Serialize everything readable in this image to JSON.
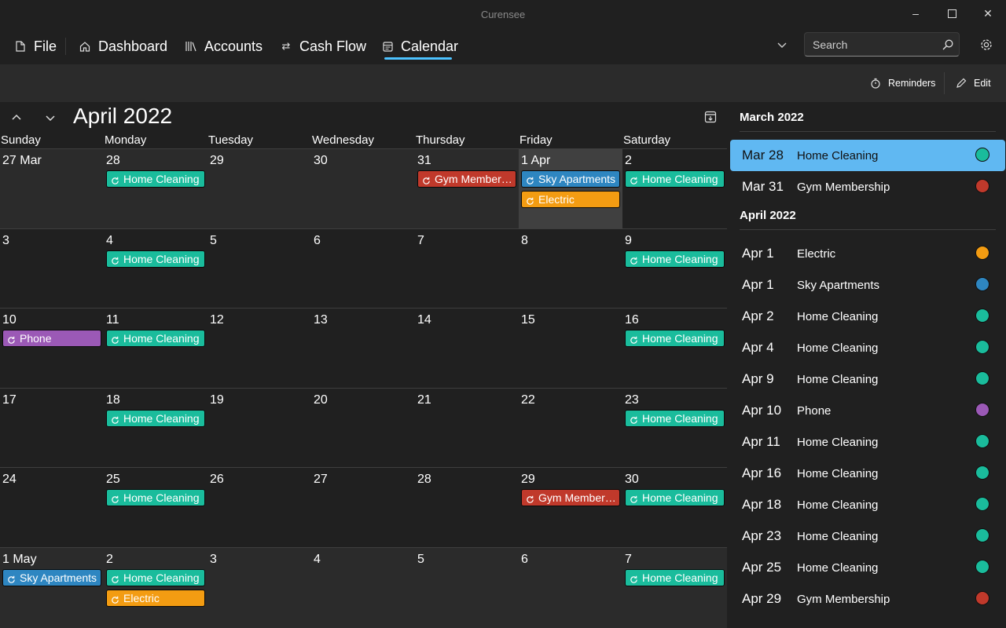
{
  "app": {
    "title": "Curensee"
  },
  "nav": {
    "file": "File",
    "dashboard": "Dashboard",
    "accounts": "Accounts",
    "cashflow": "Cash Flow",
    "calendar": "Calendar",
    "selected": "Calendar"
  },
  "search": {
    "placeholder": "Search"
  },
  "commands": {
    "reminders": "Reminders",
    "edit": "Edit"
  },
  "calendar": {
    "month_title": "April 2022",
    "weekdays": [
      "Sunday",
      "Monday",
      "Tuesday",
      "Wednesday",
      "Thursday",
      "Friday",
      "Saturday"
    ],
    "weeks": [
      [
        {
          "label": "27 Mar",
          "other": true,
          "events": []
        },
        {
          "label": "28",
          "other": true,
          "events": [
            {
              "name": "Home Cleaning",
              "color": "#1abc9c"
            }
          ]
        },
        {
          "label": "29",
          "other": true,
          "events": []
        },
        {
          "label": "30",
          "other": true,
          "events": []
        },
        {
          "label": "31",
          "other": true,
          "events": [
            {
              "name": "Gym Members...",
              "color": "#c0392b"
            }
          ]
        },
        {
          "label": "1 Apr",
          "today": true,
          "events": [
            {
              "name": "Sky Apartments",
              "color": "#2e86c1"
            },
            {
              "name": "Electric",
              "color": "#f39c12"
            }
          ]
        },
        {
          "label": "2",
          "events": [
            {
              "name": "Home Cleaning",
              "color": "#1abc9c"
            }
          ]
        }
      ],
      [
        {
          "label": "3",
          "events": []
        },
        {
          "label": "4",
          "events": [
            {
              "name": "Home Cleaning",
              "color": "#1abc9c"
            }
          ]
        },
        {
          "label": "5",
          "events": []
        },
        {
          "label": "6",
          "events": []
        },
        {
          "label": "7",
          "events": []
        },
        {
          "label": "8",
          "events": []
        },
        {
          "label": "9",
          "events": [
            {
              "name": "Home Cleaning",
              "color": "#1abc9c"
            }
          ]
        }
      ],
      [
        {
          "label": "10",
          "events": [
            {
              "name": "Phone",
              "color": "#9b59b6"
            }
          ]
        },
        {
          "label": "11",
          "events": [
            {
              "name": "Home Cleaning",
              "color": "#1abc9c"
            }
          ]
        },
        {
          "label": "12",
          "events": []
        },
        {
          "label": "13",
          "events": []
        },
        {
          "label": "14",
          "events": []
        },
        {
          "label": "15",
          "events": []
        },
        {
          "label": "16",
          "events": [
            {
              "name": "Home Cleaning",
              "color": "#1abc9c"
            }
          ]
        }
      ],
      [
        {
          "label": "17",
          "events": []
        },
        {
          "label": "18",
          "events": [
            {
              "name": "Home Cleaning",
              "color": "#1abc9c"
            }
          ]
        },
        {
          "label": "19",
          "events": []
        },
        {
          "label": "20",
          "events": []
        },
        {
          "label": "21",
          "events": []
        },
        {
          "label": "22",
          "events": []
        },
        {
          "label": "23",
          "events": [
            {
              "name": "Home Cleaning",
              "color": "#1abc9c"
            }
          ]
        }
      ],
      [
        {
          "label": "24",
          "events": []
        },
        {
          "label": "25",
          "events": [
            {
              "name": "Home Cleaning",
              "color": "#1abc9c"
            }
          ]
        },
        {
          "label": "26",
          "events": []
        },
        {
          "label": "27",
          "events": []
        },
        {
          "label": "28",
          "events": []
        },
        {
          "label": "29",
          "events": [
            {
              "name": "Gym Members...",
              "color": "#c0392b"
            }
          ]
        },
        {
          "label": "30",
          "events": [
            {
              "name": "Home Cleaning",
              "color": "#1abc9c"
            }
          ]
        }
      ],
      [
        {
          "label": "1 May",
          "other": true,
          "events": [
            {
              "name": "Sky Apartments",
              "color": "#2e86c1"
            }
          ]
        },
        {
          "label": "2",
          "other": true,
          "events": [
            {
              "name": "Home Cleaning",
              "color": "#1abc9c"
            },
            {
              "name": "Electric",
              "color": "#f39c12"
            }
          ]
        },
        {
          "label": "3",
          "other": true,
          "events": []
        },
        {
          "label": "4",
          "other": true,
          "events": []
        },
        {
          "label": "5",
          "other": true,
          "events": []
        },
        {
          "label": "6",
          "other": true,
          "events": []
        },
        {
          "label": "7",
          "other": true,
          "events": [
            {
              "name": "Home Cleaning",
              "color": "#1abc9c"
            }
          ]
        }
      ]
    ]
  },
  "agenda": [
    {
      "header": "March 2022",
      "items": [
        {
          "date": "Mar 28",
          "name": "Home Cleaning",
          "color": "#1abc9c",
          "selected": true
        },
        {
          "date": "Mar 31",
          "name": "Gym Membership",
          "color": "#c0392b"
        }
      ]
    },
    {
      "header": "April 2022",
      "items": [
        {
          "date": "Apr 1",
          "name": "Electric",
          "color": "#f39c12"
        },
        {
          "date": "Apr 1",
          "name": "Sky Apartments",
          "color": "#2e86c1"
        },
        {
          "date": "Apr 2",
          "name": "Home Cleaning",
          "color": "#1abc9c"
        },
        {
          "date": "Apr 4",
          "name": "Home Cleaning",
          "color": "#1abc9c"
        },
        {
          "date": "Apr 9",
          "name": "Home Cleaning",
          "color": "#1abc9c"
        },
        {
          "date": "Apr 10",
          "name": "Phone",
          "color": "#9b59b6"
        },
        {
          "date": "Apr 11",
          "name": "Home Cleaning",
          "color": "#1abc9c"
        },
        {
          "date": "Apr 16",
          "name": "Home Cleaning",
          "color": "#1abc9c"
        },
        {
          "date": "Apr 18",
          "name": "Home Cleaning",
          "color": "#1abc9c"
        },
        {
          "date": "Apr 23",
          "name": "Home Cleaning",
          "color": "#1abc9c"
        },
        {
          "date": "Apr 25",
          "name": "Home Cleaning",
          "color": "#1abc9c"
        },
        {
          "date": "Apr 29",
          "name": "Gym Membership",
          "color": "#c0392b"
        }
      ]
    }
  ]
}
